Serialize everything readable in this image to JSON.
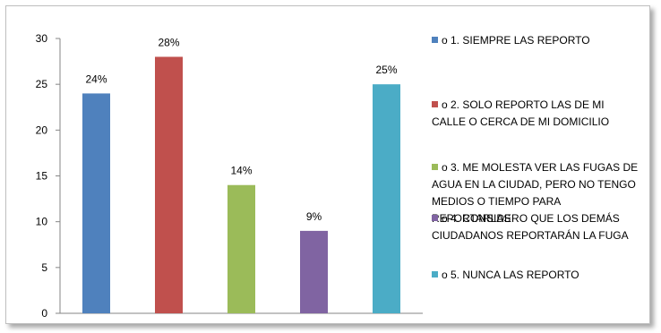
{
  "chart_data": {
    "type": "bar",
    "categories": [
      "1. SIEMPRE LAS REPORTO",
      "2. SOLO REPORTO LAS DE MI CALLE O CERCA DE MI DOMICILIO",
      "3. ME MOLESTA VER LAS FUGAS DE AGUA EN LA CIUDAD, PERO NO TENGO MEDIOS O TIEMPO PARA REPORTARLAS",
      "4. CONSIDERO QUE LOS DEMÁS CIUDADANOS REPORTARÁN LA FUGA",
      "5. NUNCA LAS REPORTO"
    ],
    "values": [
      24,
      28,
      14,
      9,
      25
    ],
    "data_labels": [
      "24%",
      "28%",
      "14%",
      "9%",
      "25%"
    ],
    "colors": [
      "#4f81bd",
      "#c0504d",
      "#9bbb59",
      "#8064a2",
      "#4bacc6"
    ],
    "ylim": [
      0,
      30
    ],
    "yticks": [
      "0",
      "5",
      "10",
      "15",
      "20",
      "25",
      "30"
    ],
    "grid": false,
    "legend_position": "right",
    "legend": [
      "o 1. SIEMPRE LAS REPORTO",
      "o 2. SOLO REPORTO LAS DE MI CALLE O CERCA DE MI DOMICILIO",
      "o 3. ME MOLESTA VER LAS FUGAS DE AGUA EN LA CIUDAD, PERO NO TENGO MEDIOS O TIEMPO PARA REPORTARLAS",
      "o 4. CONSIDERO QUE LOS DEMÁS CIUDADANOS REPORTARÁN LA FUGA",
      "o 5. NUNCA LAS REPORTO"
    ]
  }
}
